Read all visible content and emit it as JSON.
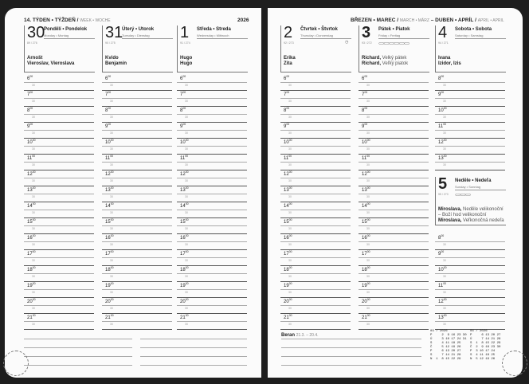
{
  "left_header": {
    "week": "14. TÝDEN • TÝŽDEŇ /",
    "week_sub": "WEEK • WOCHE",
    "year": "2026"
  },
  "right_header": {
    "m1": "BŘEZEN • MAREC /",
    "m1_sub": "MARCH • MÄRZ",
    "sep": " – ",
    "m2": "DUBEN • APRÍL /",
    "m2_sub": "APRIL • APRIL"
  },
  "hours": [
    "6",
    "7",
    "8",
    "9",
    "10",
    "11",
    "12",
    "13",
    "14",
    "15",
    "16",
    "17",
    "18",
    "19",
    "20",
    "21"
  ],
  "sat_hours_top": [
    "8",
    "9",
    "10",
    "11",
    "12",
    "13"
  ],
  "sat_hours_bottom": [
    "8",
    "9",
    "10",
    "11",
    "12",
    "13"
  ],
  "sup": "00",
  "half": "30",
  "days": [
    {
      "num": "30",
      "name": "Pondělí • Pondelok",
      "sub": "Monday • Montag",
      "count": "89 / 276",
      "names": [
        [
          "Arnošt",
          ""
        ],
        [
          "Vieroslav, Vieroslava",
          ""
        ]
      ]
    },
    {
      "num": "31",
      "name": "Úterý • Utorok",
      "sub": "Tuesday • Dienstag",
      "count": "90 / 275",
      "names": [
        [
          "Kvido",
          ""
        ],
        [
          "Benjamín",
          ""
        ]
      ]
    },
    {
      "num": "1",
      "name": "Středa • Streda",
      "sub": "Wednesday • Mittwoch",
      "count": "91 / 274",
      "names": [
        [
          "Hugo",
          ""
        ],
        [
          "Hugo",
          ""
        ]
      ]
    },
    {
      "num": "2",
      "name": "Čtvrtek • Štvrtok",
      "sub": "Thursday • Donnerstag",
      "count": "92 / 273",
      "names": [
        [
          "Erika",
          ""
        ],
        [
          "Zita",
          ""
        ]
      ],
      "symbol": "◷"
    },
    {
      "num": "3",
      "name": "Pátek • Piatok",
      "sub": "Friday • Freitag",
      "count": "93 / 272",
      "names": [
        [
          "Richard,",
          " Velký pátek"
        ],
        [
          "Richard,",
          " Veľký piatok"
        ]
      ],
      "symbol": "⊂⊃⊂⊃⊂⊃⊂⊃⊂⊃⊂⊃",
      "bold": true
    },
    {
      "num": "4",
      "name": "Sobota • Sobota",
      "sub": "Saturday • Samstag",
      "count": "94 / 271",
      "names": [
        [
          "Ivana",
          ""
        ],
        [
          "Izidor, Izis",
          ""
        ]
      ]
    },
    {
      "num": "5",
      "name": "Neděle • Nedeľa",
      "sub": "Sunday • Sonntag",
      "count": "95 / 270",
      "names": [
        [
          "Miroslava,",
          " Neděle velikonoční"
        ],
        [
          "",
          "– Boží hod velikonoční"
        ],
        [
          "Miroslava,",
          " Veľkonočná nedeľa"
        ]
      ],
      "symbol": "⊂⊃⊂⊃⊂⊃",
      "bold": true
    }
  ],
  "zodiac": {
    "name": "Beran",
    "range": "21.3. – 20.4."
  },
  "calendars": [
    {
      "title": "03 / 2026",
      "rows": [
        "P     2  9 16 23 30",
        "Ú     3 10 17 24 31",
        "S     4 11 18 25",
        "Č     5 12 19 26",
        "P     6 13 20 27",
        "S     7 14 21 28",
        "N  1  8 15 22 29"
      ]
    },
    {
      "title": "04 / 2026",
      "rows": [
        "P     6 13 20 27",
        "Ú     7 14 21 28",
        "S  1  8 15 22 29",
        "Č  2  9 16 23 30",
        "P  3 10 17 24",
        "S  4 11 18 25",
        "N  5 12 19 26"
      ]
    }
  ]
}
